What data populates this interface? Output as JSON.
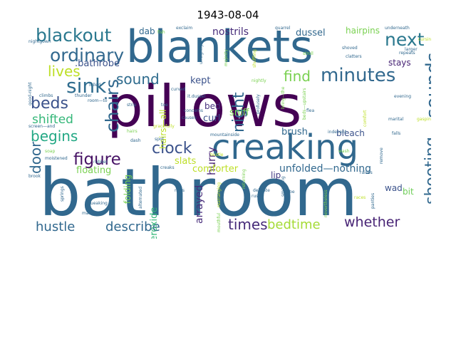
{
  "title": "1943-08-04",
  "words": [
    {
      "text": "pillows",
      "color": "#440154"
    },
    {
      "text": "bathroom",
      "color": "#31688e"
    },
    {
      "text": "blankets",
      "color": "#31688e"
    },
    {
      "text": "creaking",
      "color": "#31688e"
    },
    {
      "text": "blackout",
      "color": "#2a788e"
    },
    {
      "text": "ordinary",
      "color": "#31688e"
    },
    {
      "text": "next",
      "color": "#2a788e"
    },
    {
      "text": "minutes",
      "color": "#31688e"
    },
    {
      "text": "sink",
      "color": "#2f6c8e"
    },
    {
      "text": "lives",
      "color": "#bddf26"
    },
    {
      "text": "chairs",
      "color": "#31688e"
    },
    {
      "text": "sound",
      "color": "#2f6c8e"
    },
    {
      "text": "sounds",
      "color": "#31688e"
    },
    {
      "text": "night",
      "color": "#31688e"
    },
    {
      "text": "find",
      "color": "#7ad151"
    },
    {
      "text": "beds",
      "color": "#3b528b"
    },
    {
      "text": "shifted",
      "color": "#35b779"
    },
    {
      "text": "begins",
      "color": "#22a884"
    },
    {
      "text": "clock",
      "color": "#3b528b"
    },
    {
      "text": "figure",
      "color": "#471365"
    },
    {
      "text": "door",
      "color": "#31688e"
    },
    {
      "text": "shooting",
      "color": "#31688e"
    },
    {
      "text": "hustle",
      "color": "#31688e"
    },
    {
      "text": "describe",
      "color": "#31688e"
    },
    {
      "text": "times",
      "color": "#472c7a"
    },
    {
      "text": "bedtime",
      "color": "#a5db36"
    },
    {
      "text": "whether",
      "color": "#482475"
    },
    {
      "text": "dussel",
      "color": "#31688e"
    },
    {
      "text": "hairpins",
      "color": "#7ad151"
    },
    {
      "text": "nostrils",
      "color": "#472c7a"
    },
    {
      "text": "dab",
      "color": "#31688e"
    },
    {
      "text": "stays",
      "color": "#482475"
    },
    {
      "text": "kept",
      "color": "#3b528b"
    },
    {
      "text": "bed",
      "color": "#46327e"
    },
    {
      "text": "floating",
      "color": "#7ad151"
    },
    {
      "text": "slats",
      "color": "#bddf26"
    },
    {
      "text": "sniff",
      "color": "#7ad151"
    },
    {
      "text": "brush",
      "color": "#31688e"
    },
    {
      "text": "bleach",
      "color": "#3b528b"
    },
    {
      "text": "curl",
      "color": "#3b528b"
    },
    {
      "text": "lip",
      "color": "#443a83"
    },
    {
      "text": "hurry",
      "color": "#482475"
    },
    {
      "text": "comforter",
      "color": "#bddf26"
    },
    {
      "text": "unfolded—nothing",
      "color": "#31688e"
    },
    {
      "text": "arrayed",
      "color": "#472c7a"
    },
    {
      "text": "peroxide",
      "color": "#35b779"
    },
    {
      "text": "folding",
      "color": "#7ad151"
    },
    {
      "text": "hairs—all",
      "color": "#bddf26"
    },
    {
      "text": "wad",
      "color": "#3b528b"
    },
    {
      "text": "bit",
      "color": "#6ece58"
    },
    {
      "text": ".bathrobe",
      "color": "#3b528b"
    },
    {
      "text": "nightgown",
      "color": "#31688e"
    },
    {
      "text": "fish",
      "color": "#7ad151"
    },
    {
      "text": "exclaim",
      "color": "#31688e"
    },
    {
      "text": "quarrel",
      "color": "#31688e"
    },
    {
      "text": "underneath",
      "color": "#31688e"
    },
    {
      "text": "cursing",
      "color": "#bddf26"
    },
    {
      "text": "larger",
      "color": "#31688e"
    },
    {
      "text": "repeats",
      "color": "#31688e"
    },
    {
      "text": "clatters",
      "color": "#31688e"
    },
    {
      "text": "shoved",
      "color": "#31688e"
    },
    {
      "text": "stroll",
      "color": "#7ad151"
    },
    {
      "text": "shuffling",
      "color": "#bddf26"
    },
    {
      "text": "unsightly",
      "color": "#31688e"
    },
    {
      "text": "majesty",
      "color": "#7ad151"
    },
    {
      "text": "nightly",
      "color": "#7ad151"
    },
    {
      "text": "lulled",
      "color": "#31688e"
    },
    {
      "text": "good-night",
      "color": "#31688e"
    },
    {
      "text": "climbs",
      "color": "#31688e"
    },
    {
      "text": "thunder",
      "color": "#31688e"
    },
    {
      "text": "room—to",
      "color": "#31688e"
    },
    {
      "text": "it.dussel",
      "color": "#31688e"
    },
    {
      "text": "evening",
      "color": "#31688e"
    },
    {
      "text": "marital",
      "color": "#31688e"
    },
    {
      "text": "gasping",
      "color": "#bddf26"
    },
    {
      "text": "flea",
      "color": "#31688e"
    },
    {
      "text": "profusely",
      "color": "#31688e"
    },
    {
      "text": "beds—upstairs",
      "color": "#7ad151"
    },
    {
      "text": "bring—the",
      "color": "#7ad151"
    },
    {
      "text": "concerns",
      "color": "#31688e"
    },
    {
      "text": "strip",
      "color": "#31688e"
    },
    {
      "text": "toe",
      "color": "#31688e"
    },
    {
      "text": "curved",
      "color": "#31688e"
    },
    {
      "text": "screen—and",
      "color": "#31688e"
    },
    {
      "text": "soap",
      "color": "#7ad151"
    },
    {
      "text": "hairs",
      "color": "#7ad151"
    },
    {
      "text": "dash",
      "color": "#31688e"
    },
    {
      "text": "spot",
      "color": "#31688e"
    },
    {
      "text": "gracefully",
      "color": "#bddf26"
    },
    {
      "text": "causes",
      "color": "#31688e"
    },
    {
      "text": "mountainside",
      "color": "#31688e"
    },
    {
      "text": "indecent",
      "color": "#31688e"
    },
    {
      "text": "falls",
      "color": "#31688e"
    },
    {
      "text": "moistened",
      "color": "#31688e"
    },
    {
      "text": "creaks",
      "color": "#31688e"
    },
    {
      "text": "bustle",
      "color": "#bddf26"
    },
    {
      "text": "wash",
      "color": "#7ad151"
    },
    {
      "text": "remove",
      "color": "#31688e"
    },
    {
      "text": "raises",
      "color": "#31688e"
    },
    {
      "text": "rubber",
      "color": "#31688e"
    },
    {
      "text": "brook",
      "color": "#31688e"
    },
    {
      "text": "springs",
      "color": "#31688e"
    },
    {
      "text": "alternated",
      "color": "#31688e"
    },
    {
      "text": "nails",
      "color": "#31688e"
    },
    {
      "text": "rearranging",
      "color": "#bddf26"
    },
    {
      "text": "delicate",
      "color": "#31688e"
    },
    {
      "text": "robe",
      "color": "#31688e"
    },
    {
      "text": "smacking",
      "color": "#31688e"
    },
    {
      "text": "nevertheless",
      "color": "#7ad151"
    },
    {
      "text": "races",
      "color": "#bddf26"
    },
    {
      "text": "panties",
      "color": "#31688e"
    },
    {
      "text": "squeaking",
      "color": "#31688e"
    },
    {
      "text": "rustle",
      "color": "#31688e"
    },
    {
      "text": "mat",
      "color": "#31688e"
    },
    {
      "text": "returning",
      "color": "#7ad151"
    },
    {
      "text": "mouthful",
      "color": "#7ad151"
    },
    {
      "text": "comfort",
      "color": "#bddf26"
    }
  ]
}
